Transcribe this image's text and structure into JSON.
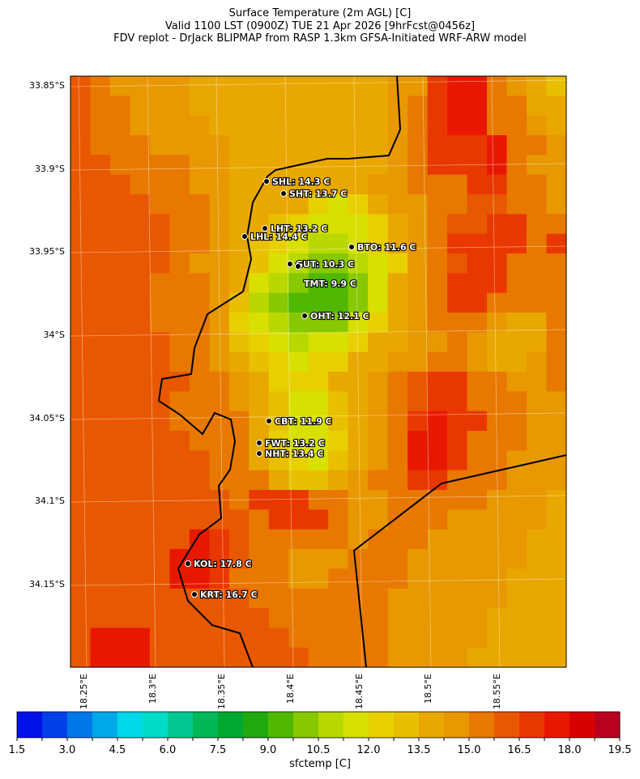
{
  "title": {
    "line1": "Surface Temperature (2m AGL) [C]",
    "line2": "Valid 1100 LST (0900Z) TUE 21 Apr 2026 [9hrFcst@0456z]",
    "line3": "FDV replot - DrJack BLIPMAP from RASP 1.3km GFSA-Initiated WRF-ARW model"
  },
  "chart_data": {
    "type": "heatmap",
    "variable": "sfctemp [C]",
    "lat_ticks": [
      "33.85°S",
      "33.9°S",
      "33.95°S",
      "34°S",
      "34.05°S",
      "34.1°S",
      "34.15°S"
    ],
    "lon_ticks": [
      "18.25°E",
      "18.3°E",
      "18.35°E",
      "18.4°E",
      "18.45°E",
      "18.5°E",
      "18.55°E"
    ],
    "colorbar": {
      "label": "sfctemp [C]",
      "range": [
        1.5,
        19.5
      ],
      "step": 0.75,
      "tick_labels": [
        "1.5",
        "3.0",
        "4.5",
        "6.0",
        "7.5",
        "9.0",
        "10.5",
        "12.0",
        "13.5",
        "15.0",
        "16.5",
        "18.0",
        "19.5"
      ],
      "colors": [
        "#0010e8",
        "#0040e8",
        "#0078e8",
        "#00a8e8",
        "#00d8e8",
        "#00dcc8",
        "#00c890",
        "#00b858",
        "#00a830",
        "#20a810",
        "#50b800",
        "#88c800",
        "#b8d800",
        "#d8e000",
        "#e8d000",
        "#e8c000",
        "#e8a800",
        "#e89800",
        "#e87800",
        "#e85800",
        "#e83800",
        "#e81800",
        "#d80000",
        "#b80020"
      ]
    },
    "grid_levels_note_key": "a=bin 0 ... x=bin 23",
    "grid": [
      "tsrrrrqqqqqqqqqqrruvvsrqp",
      "tssrrrqqqqqqqqqqrsuvvssqq",
      "tssrrrrqqqqqqqqqrsuvvssrq",
      "tsssrrrrqqqqqqqqrsuuuvssr",
      "ttssssrrqqqqqqqqrsuuuvsrr",
      "tttsssrrqqqqqqqrrsssuussr",
      "ttttsssrqqqqonoqrrssttssr",
      "tttttssrqqponnnoqrsttuuss",
      "tttttssrqponmmnoqrsuuuusu",
      "tttttsrrqpnmllmnorstuusss",
      "ttttsssrqnmlkklnqrsuuusss",
      "ttttsssrpmlkkklnqrsuussss",
      "ttttsssronmlllnoqrsssrqqs",
      "tttttssrponmnnoqqrrsrqqqs",
      "tttttssrqponooqqrrssrqqrs",
      "ttttttssrqoooqqrstuussrrs",
      "tttttsssrqpnnpqrstuusssrr",
      "tttttssssqpnnpqrsuvuussrr",
      "ttttttsssqonnoqrsvvusssrr",
      "tttttttssqponpqrsvvussrrr",
      "tttttttsssqppqrssuusssrrr",
      "ttttttttsuuussrrsssssrrrq",
      "tttttttttsuuusrrsssrrrrrq",
      "ttttttvutsssssrsssrrrrrqq",
      "tttttvvutssrrrsssrrrrrrqq",
      "tttttvvusssrrssssrrrrrqqq",
      "tttttttttsssssssrrrrrrqqq",
      "ttttttttttssssssrrrrrqqqq",
      "tvvvtttttttsssssrrrrrqqqq",
      "tvvvttttttttssssrrrrqqqqq"
    ],
    "stations": [
      {
        "label": "SHL: 14.3 C"
      },
      {
        "label": "SHT: 13.7 C"
      },
      {
        "label": "LHT: 13.2 C"
      },
      {
        "label": "LHL: 14.4 C"
      },
      {
        "label": "BTO: 11.6 C"
      },
      {
        "label": "GUT: 10.3 C"
      },
      {
        "label": "TMT: 9.9 C"
      },
      {
        "label": "OHT: 12.1 C"
      },
      {
        "label": "CBT: 11.9 C"
      },
      {
        "label": "FWT: 13.2 C"
      },
      {
        "label": "NHT: 13.4 C"
      },
      {
        "label": "KOL: 17.8 C"
      },
      {
        "label": "KRT: 16.7 C"
      }
    ]
  }
}
